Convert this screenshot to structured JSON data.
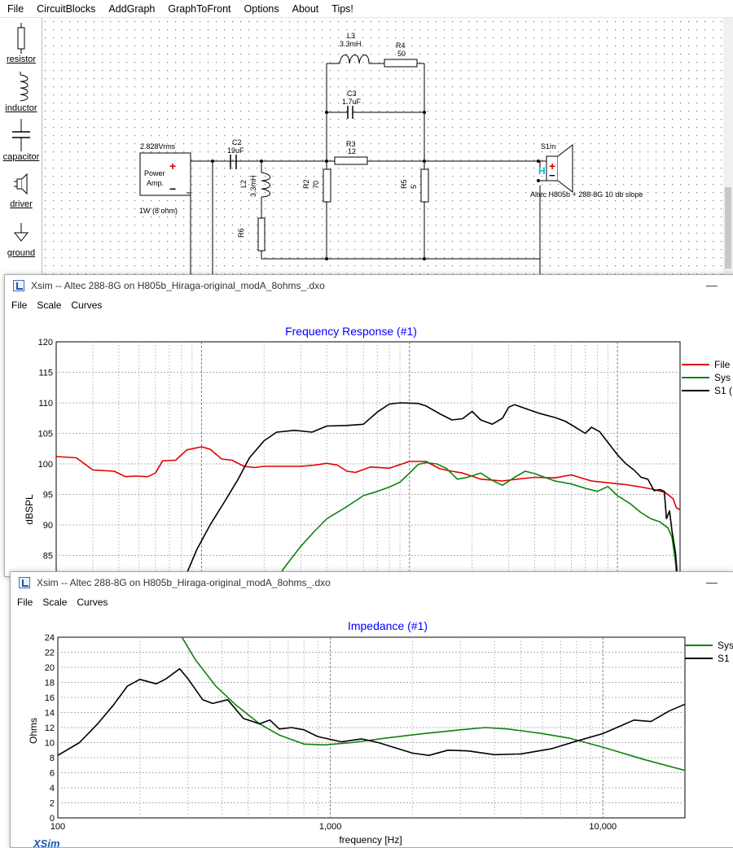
{
  "menu": {
    "file": "File",
    "blocks": "CircuitBlocks",
    "addgraph": "AddGraph",
    "tofront": "GraphToFront",
    "options": "Options",
    "about": "About",
    "tips": "Tips!"
  },
  "palette": {
    "resistor": "resistor",
    "inductor": "inductor",
    "capacitor": "capacitor",
    "driver": "driver",
    "ground": "ground"
  },
  "schematic": {
    "amp_voltage": "2.828Vrms",
    "amp_line1": "Power",
    "amp_line2": "Amp.",
    "amp_note": "1W (8 ohm)",
    "c2_name": "C2",
    "c2_value": "19uF",
    "l2_name": "L2",
    "l2_value": "3.3mH",
    "r6_name": "R6",
    "r2_name": "R2",
    "r2_value": "70",
    "r3_name": "R3",
    "r3_value": "12",
    "r5_name": "R5",
    "r5_value": "5",
    "l3_name": "L3",
    "l3_value": "3.3mH",
    "r4_name": "R4",
    "r4_value": "50",
    "c3_name": "C3",
    "c3_value": "1.7uF",
    "s1_name": "S1m",
    "s1_mark": "H",
    "s1_desc": "Altec H805b + 288-8G 10 db slope",
    "plus": "+",
    "minus": "−"
  },
  "freq_window": {
    "title": "Xsim -- Altec 288-8G on H805b_Hiraga-original_modA_8ohms_.dxo",
    "menu": [
      "File",
      "Scale",
      "Curves"
    ],
    "minimize": "—",
    "chart_data": {
      "type": "line",
      "title": "Frequency Response (#1)",
      "ylabel": "dBSPL",
      "ylim": [
        80,
        120
      ],
      "yticks": [
        "120",
        "115",
        "110",
        "105",
        "100",
        "95",
        "90",
        "85"
      ],
      "xscale": "log",
      "xlim": [
        20,
        20000
      ],
      "legend_position": "right",
      "legend": [
        "File",
        "Sys",
        "S1 ("
      ],
      "series": [
        {
          "color": "#e00000",
          "points": [
            [
              20,
              101.2
            ],
            [
              25,
              101
            ],
            [
              30,
              99
            ],
            [
              38,
              98.8
            ],
            [
              43,
              97.9
            ],
            [
              48,
              98
            ],
            [
              55,
              97.9
            ],
            [
              60,
              98.5
            ],
            [
              65,
              100.5
            ],
            [
              75,
              100.6
            ],
            [
              85,
              102.3
            ],
            [
              100,
              102.8
            ],
            [
              110,
              102.4
            ],
            [
              125,
              100.8
            ],
            [
              140,
              100.6
            ],
            [
              160,
              99.6
            ],
            [
              180,
              99.4
            ],
            [
              200,
              99.6
            ],
            [
              250,
              99.6
            ],
            [
              300,
              99.6
            ],
            [
              350,
              99.8
            ],
            [
              400,
              100.1
            ],
            [
              450,
              99.8
            ],
            [
              500,
              98.8
            ],
            [
              550,
              98.6
            ],
            [
              650,
              99.5
            ],
            [
              800,
              99.3
            ],
            [
              1000,
              100.4
            ],
            [
              1200,
              100.4
            ],
            [
              1400,
              99.2
            ],
            [
              1600,
              98.8
            ],
            [
              1800,
              98.5
            ],
            [
              2200,
              97.5
            ],
            [
              2800,
              97.2
            ],
            [
              3500,
              97.6
            ],
            [
              4000,
              97.8
            ],
            [
              5000,
              97.7
            ],
            [
              6000,
              98.2
            ],
            [
              7500,
              97.2
            ],
            [
              9000,
              96.9
            ],
            [
              11000,
              96.6
            ],
            [
              13000,
              96.2
            ],
            [
              15000,
              95.8
            ],
            [
              17000,
              95.3
            ],
            [
              18500,
              94.3
            ],
            [
              19200,
              92.8
            ],
            [
              20000,
              92.5
            ]
          ]
        },
        {
          "color": "#108010",
          "points": [
            [
              200,
              78
            ],
            [
              250,
              83
            ],
            [
              300,
              86.5
            ],
            [
              350,
              89
            ],
            [
              400,
              91
            ],
            [
              500,
              93
            ],
            [
              600,
              94.8
            ],
            [
              700,
              95.5
            ],
            [
              800,
              96.2
            ],
            [
              900,
              97
            ],
            [
              1000,
              98.5
            ],
            [
              1100,
              99.9
            ],
            [
              1200,
              100.2
            ],
            [
              1350,
              100
            ],
            [
              1500,
              99.3
            ],
            [
              1700,
              97.5
            ],
            [
              1900,
              97.8
            ],
            [
              2200,
              98.5
            ],
            [
              2500,
              97.3
            ],
            [
              2800,
              96.5
            ],
            [
              3200,
              97.8
            ],
            [
              3600,
              98.8
            ],
            [
              4000,
              98.4
            ],
            [
              5000,
              97.2
            ],
            [
              6000,
              96.7
            ],
            [
              7000,
              96
            ],
            [
              8000,
              95.5
            ],
            [
              9000,
              96.3
            ],
            [
              10000,
              94.8
            ],
            [
              11500,
              93.5
            ],
            [
              13000,
              92
            ],
            [
              14500,
              91
            ],
            [
              16000,
              90.5
            ],
            [
              17500,
              89.5
            ],
            [
              18300,
              88
            ],
            [
              19000,
              84
            ],
            [
              19400,
              80
            ]
          ]
        },
        {
          "color": "#000000",
          "points": [
            [
              80,
              80
            ],
            [
              95,
              86
            ],
            [
              110,
              90
            ],
            [
              130,
              94
            ],
            [
              150,
              97.5
            ],
            [
              170,
              101
            ],
            [
              200,
              103.8
            ],
            [
              230,
              105.2
            ],
            [
              280,
              105.5
            ],
            [
              340,
              105.2
            ],
            [
              400,
              106.2
            ],
            [
              500,
              106.3
            ],
            [
              600,
              106.5
            ],
            [
              700,
              108.5
            ],
            [
              800,
              109.8
            ],
            [
              900,
              110
            ],
            [
              1100,
              109.9
            ],
            [
              1200,
              109.5
            ],
            [
              1400,
              108.2
            ],
            [
              1600,
              107.2
            ],
            [
              1800,
              107.4
            ],
            [
              2000,
              108.6
            ],
            [
              2200,
              107.2
            ],
            [
              2500,
              106.5
            ],
            [
              2800,
              107.5
            ],
            [
              3000,
              109.3
            ],
            [
              3200,
              109.7
            ],
            [
              3800,
              108.8
            ],
            [
              4200,
              108.3
            ],
            [
              5000,
              107.6
            ],
            [
              5600,
              107
            ],
            [
              6000,
              106.4
            ],
            [
              7000,
              105
            ],
            [
              7500,
              106
            ],
            [
              8200,
              105.3
            ],
            [
              9000,
              103.5
            ],
            [
              10000,
              101.5
            ],
            [
              11000,
              100
            ],
            [
              12000,
              99
            ],
            [
              13000,
              97.8
            ],
            [
              14000,
              97.5
            ],
            [
              15000,
              95.6
            ],
            [
              16000,
              95.8
            ],
            [
              16800,
              95.5
            ],
            [
              17200,
              91
            ],
            [
              17800,
              92.3
            ],
            [
              18300,
              89
            ],
            [
              19000,
              85.5
            ],
            [
              19600,
              80
            ]
          ]
        }
      ]
    }
  },
  "imp_window": {
    "title": "Xsim -- Altec 288-8G on H805b_Hiraga-original_modA_8ohms_.dxo",
    "menu": [
      "File",
      "Scale",
      "Curves"
    ],
    "minimize": "—",
    "footer_logo": "XSim",
    "chart_data": {
      "type": "line",
      "title": "Impedance (#1)",
      "ylabel": "Ohms",
      "xlabel": "frequency [Hz]",
      "ylim": [
        0,
        24
      ],
      "yticks": [
        "24",
        "22",
        "20",
        "18",
        "16",
        "14",
        "12",
        "10",
        "8",
        "6",
        "4",
        "2",
        "0"
      ],
      "xscale": "log",
      "xlim": [
        100,
        20000
      ],
      "xticks": [
        "100",
        "1,000",
        "10,000"
      ],
      "legend_position": "right",
      "legend": [
        "Sys",
        "S1"
      ],
      "series": [
        {
          "color": "#108010",
          "points": [
            [
              280,
              24.5
            ],
            [
              320,
              21
            ],
            [
              380,
              17.5
            ],
            [
              450,
              15
            ],
            [
              550,
              12.5
            ],
            [
              650,
              11
            ],
            [
              800,
              9.8
            ],
            [
              950,
              9.7
            ],
            [
              1200,
              10
            ],
            [
              1600,
              10.6
            ],
            [
              2200,
              11.2
            ],
            [
              3000,
              11.7
            ],
            [
              3700,
              12
            ],
            [
              4500,
              11.8
            ],
            [
              6000,
              11.2
            ],
            [
              7500,
              10.6
            ],
            [
              10000,
              9.4
            ],
            [
              14000,
              7.8
            ],
            [
              20000,
              6.3
            ]
          ]
        },
        {
          "color": "#000000",
          "points": [
            [
              100,
              8.3
            ],
            [
              120,
              10
            ],
            [
              140,
              12.5
            ],
            [
              160,
              15
            ],
            [
              180,
              17.5
            ],
            [
              200,
              18.4
            ],
            [
              230,
              17.8
            ],
            [
              250,
              18.5
            ],
            [
              280,
              19.8
            ],
            [
              300,
              18.5
            ],
            [
              340,
              15.7
            ],
            [
              370,
              15.2
            ],
            [
              420,
              15.7
            ],
            [
              480,
              13.2
            ],
            [
              550,
              12.5
            ],
            [
              600,
              13
            ],
            [
              650,
              11.8
            ],
            [
              720,
              12
            ],
            [
              800,
              11.7
            ],
            [
              900,
              10.8
            ],
            [
              1100,
              10.1
            ],
            [
              1300,
              10.5
            ],
            [
              1500,
              10
            ],
            [
              2000,
              8.6
            ],
            [
              2300,
              8.3
            ],
            [
              2700,
              9
            ],
            [
              3200,
              8.9
            ],
            [
              4000,
              8.4
            ],
            [
              5000,
              8.5
            ],
            [
              6500,
              9.2
            ],
            [
              8000,
              10.2
            ],
            [
              10000,
              11.2
            ],
            [
              13000,
              13
            ],
            [
              15000,
              12.8
            ],
            [
              17500,
              14.2
            ],
            [
              20000,
              15.1
            ]
          ]
        }
      ]
    }
  }
}
